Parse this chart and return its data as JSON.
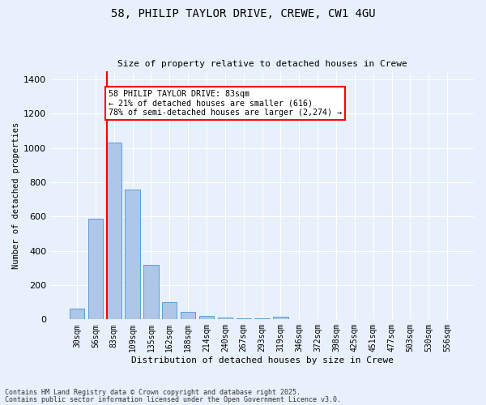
{
  "title1": "58, PHILIP TAYLOR DRIVE, CREWE, CW1 4GU",
  "title2": "Size of property relative to detached houses in Crewe",
  "xlabel": "Distribution of detached houses by size in Crewe",
  "ylabel": "Number of detached properties",
  "categories": [
    "30sqm",
    "56sqm",
    "83sqm",
    "109sqm",
    "135sqm",
    "162sqm",
    "188sqm",
    "214sqm",
    "240sqm",
    "267sqm",
    "293sqm",
    "319sqm",
    "346sqm",
    "372sqm",
    "398sqm",
    "425sqm",
    "451sqm",
    "477sqm",
    "503sqm",
    "530sqm",
    "556sqm"
  ],
  "values": [
    65,
    590,
    1030,
    760,
    320,
    100,
    45,
    20,
    10,
    8,
    5,
    15,
    0,
    0,
    0,
    0,
    0,
    0,
    0,
    0,
    0
  ],
  "bar_color": "#aec6e8",
  "bar_edge_color": "#5a9fd4",
  "red_line_index": 2,
  "annotation_text": "58 PHILIP TAYLOR DRIVE: 83sqm\n← 21% of detached houses are smaller (616)\n78% of semi-detached houses are larger (2,274) →",
  "annotation_box_color": "white",
  "annotation_box_edge_color": "red",
  "ylim": [
    0,
    1450
  ],
  "background_color": "#e8f0fb",
  "footer1": "Contains HM Land Registry data © Crown copyright and database right 2025.",
  "footer2": "Contains public sector information licensed under the Open Government Licence v3.0."
}
